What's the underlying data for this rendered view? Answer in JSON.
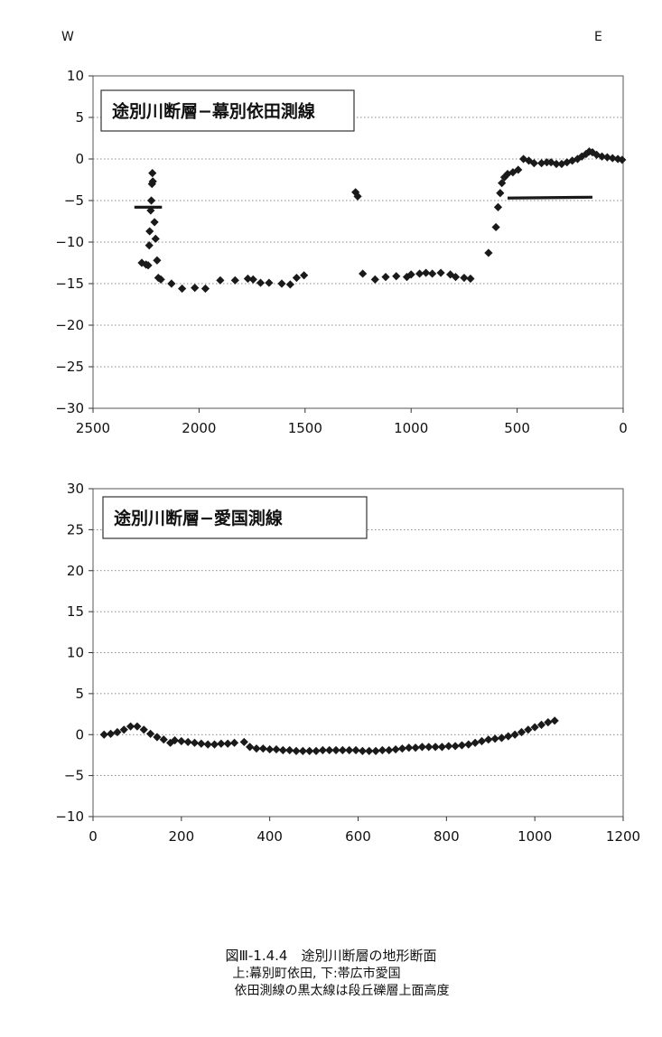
{
  "direction_labels": {
    "west": "W",
    "east": "E"
  },
  "chart_data": [
    {
      "type": "scatter",
      "title": "途別川断層−幕別依田測線",
      "xlim": [
        2500,
        0
      ],
      "ylim": [
        -30,
        10
      ],
      "x_ticks": [
        2500,
        2000,
        1500,
        1000,
        500,
        0
      ],
      "y_ticks": [
        10,
        5,
        0,
        -5,
        -10,
        -15,
        -20,
        -25,
        -30
      ],
      "x_reversed": true,
      "grid": "horizontal dotted",
      "marker": "diamond",
      "color": "#1a1a1a",
      "series": [
        {
          "points": [
            [
              2270,
              -12.5
            ],
            [
              2250,
              -12.7
            ],
            [
              2240,
              -12.8
            ],
            [
              2235,
              -10.4
            ],
            [
              2233,
              -8.7
            ],
            [
              2228,
              -6.2
            ],
            [
              2225,
              -5.0
            ],
            [
              2222,
              -3.0
            ],
            [
              2220,
              -1.7
            ],
            [
              2218,
              -2.7
            ],
            [
              2210,
              -7.6
            ],
            [
              2205,
              -9.6
            ],
            [
              2198,
              -12.2
            ],
            [
              2192,
              -14.3
            ],
            [
              2180,
              -14.5
            ],
            [
              2130,
              -15.0
            ],
            [
              2080,
              -15.6
            ],
            [
              2020,
              -15.5
            ],
            [
              1970,
              -15.6
            ],
            [
              1900,
              -14.6
            ],
            [
              1830,
              -14.6
            ],
            [
              1770,
              -14.4
            ],
            [
              1745,
              -14.5
            ],
            [
              1710,
              -14.9
            ],
            [
              1670,
              -14.9
            ],
            [
              1610,
              -15.0
            ],
            [
              1570,
              -15.1
            ],
            [
              1540,
              -14.3
            ],
            [
              1505,
              -14.0
            ],
            [
              1262,
              -4.0
            ],
            [
              1252,
              -4.5
            ],
            [
              1228,
              -13.8
            ],
            [
              1170,
              -14.5
            ],
            [
              1120,
              -14.2
            ],
            [
              1070,
              -14.1
            ],
            [
              1020,
              -14.2
            ],
            [
              1000,
              -13.9
            ],
            [
              960,
              -13.8
            ],
            [
              930,
              -13.7
            ],
            [
              900,
              -13.8
            ],
            [
              860,
              -13.7
            ],
            [
              815,
              -13.9
            ],
            [
              790,
              -14.2
            ],
            [
              750,
              -14.3
            ],
            [
              720,
              -14.4
            ],
            [
              635,
              -11.3
            ],
            [
              600,
              -8.2
            ],
            [
              590,
              -5.8
            ],
            [
              580,
              -4.1
            ],
            [
              572,
              -2.9
            ],
            [
              560,
              -2.2
            ],
            [
              545,
              -1.8
            ],
            [
              520,
              -1.6
            ],
            [
              495,
              -1.3
            ],
            [
              470,
              0.0
            ],
            [
              445,
              -0.2
            ],
            [
              420,
              -0.5
            ],
            [
              385,
              -0.5
            ],
            [
              360,
              -0.4
            ],
            [
              340,
              -0.4
            ],
            [
              315,
              -0.6
            ],
            [
              290,
              -0.6
            ],
            [
              265,
              -0.4
            ],
            [
              240,
              -0.2
            ],
            [
              215,
              0.0
            ],
            [
              195,
              0.3
            ],
            [
              175,
              0.6
            ],
            [
              160,
              0.9
            ],
            [
              145,
              0.8
            ],
            [
              125,
              0.5
            ],
            [
              100,
              0.3
            ],
            [
              75,
              0.2
            ],
            [
              50,
              0.1
            ],
            [
              25,
              0.0
            ],
            [
              5,
              -0.1
            ]
          ]
        },
        {
          "type": "line",
          "segments": [
            {
              "x": [
                2305,
                2175
              ],
              "y": [
                -5.8,
                -5.8
              ]
            },
            {
              "x": [
                545,
                145
              ],
              "y": [
                -4.7,
                -4.6
              ]
            }
          ]
        }
      ]
    },
    {
      "type": "scatter",
      "title": "途別川断層−愛国測線",
      "xlim": [
        0,
        1200
      ],
      "ylim": [
        -10,
        30
      ],
      "x_ticks": [
        0,
        200,
        400,
        600,
        800,
        1000,
        1200
      ],
      "y_ticks": [
        30,
        25,
        20,
        15,
        10,
        5,
        0,
        -5,
        -10
      ],
      "x_reversed": false,
      "grid": "horizontal dotted",
      "marker": "diamond",
      "color": "#1a1a1a",
      "series": [
        {
          "points": [
            [
              25,
              0.0
            ],
            [
              40,
              0.1
            ],
            [
              55,
              0.3
            ],
            [
              70,
              0.6
            ],
            [
              85,
              1.0
            ],
            [
              100,
              1.0
            ],
            [
              115,
              0.6
            ],
            [
              130,
              0.1
            ],
            [
              145,
              -0.3
            ],
            [
              160,
              -0.6
            ],
            [
              175,
              -1.0
            ],
            [
              185,
              -0.7
            ],
            [
              200,
              -0.8
            ],
            [
              215,
              -0.9
            ],
            [
              230,
              -1.0
            ],
            [
              245,
              -1.1
            ],
            [
              260,
              -1.2
            ],
            [
              275,
              -1.2
            ],
            [
              290,
              -1.1
            ],
            [
              305,
              -1.1
            ],
            [
              320,
              -1.0
            ],
            [
              342,
              -0.9
            ],
            [
              355,
              -1.5
            ],
            [
              370,
              -1.7
            ],
            [
              385,
              -1.7
            ],
            [
              400,
              -1.8
            ],
            [
              415,
              -1.8
            ],
            [
              430,
              -1.9
            ],
            [
              445,
              -1.9
            ],
            [
              460,
              -2.0
            ],
            [
              475,
              -2.0
            ],
            [
              490,
              -2.0
            ],
            [
              505,
              -2.0
            ],
            [
              520,
              -1.9
            ],
            [
              535,
              -1.9
            ],
            [
              550,
              -1.9
            ],
            [
              565,
              -1.9
            ],
            [
              580,
              -1.9
            ],
            [
              595,
              -1.9
            ],
            [
              610,
              -2.0
            ],
            [
              625,
              -2.0
            ],
            [
              640,
              -2.0
            ],
            [
              655,
              -1.9
            ],
            [
              670,
              -1.9
            ],
            [
              685,
              -1.8
            ],
            [
              700,
              -1.7
            ],
            [
              715,
              -1.6
            ],
            [
              730,
              -1.6
            ],
            [
              745,
              -1.5
            ],
            [
              760,
              -1.5
            ],
            [
              775,
              -1.5
            ],
            [
              790,
              -1.5
            ],
            [
              805,
              -1.4
            ],
            [
              820,
              -1.4
            ],
            [
              835,
              -1.3
            ],
            [
              850,
              -1.2
            ],
            [
              865,
              -1.0
            ],
            [
              880,
              -0.8
            ],
            [
              895,
              -0.6
            ],
            [
              910,
              -0.5
            ],
            [
              925,
              -0.4
            ],
            [
              940,
              -0.2
            ],
            [
              955,
              0.0
            ],
            [
              970,
              0.3
            ],
            [
              985,
              0.6
            ],
            [
              1000,
              0.9
            ],
            [
              1015,
              1.2
            ],
            [
              1030,
              1.5
            ],
            [
              1045,
              1.7
            ]
          ]
        }
      ]
    }
  ],
  "caption": {
    "line1": "図Ⅲ-1.4.4　途別川断層の地形断面",
    "line2": "上:幕別町依田, 下:帯広市愛国",
    "line3": "依田測線の黒太線は段丘礫層上面高度"
  }
}
